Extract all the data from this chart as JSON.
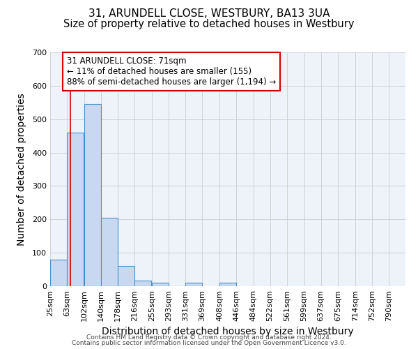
{
  "title1": "31, ARUNDELL CLOSE, WESTBURY, BA13 3UA",
  "title2": "Size of property relative to detached houses in Westbury",
  "xlabel": "Distribution of detached houses by size in Westbury",
  "ylabel": "Number of detached properties",
  "bin_labels": [
    "25sqm",
    "63sqm",
    "102sqm",
    "140sqm",
    "178sqm",
    "216sqm",
    "255sqm",
    "293sqm",
    "331sqm",
    "369sqm",
    "408sqm",
    "446sqm",
    "484sqm",
    "522sqm",
    "561sqm",
    "599sqm",
    "637sqm",
    "675sqm",
    "714sqm",
    "752sqm",
    "790sqm"
  ],
  "bin_edges": [
    25,
    63,
    102,
    140,
    178,
    216,
    255,
    293,
    331,
    369,
    408,
    446,
    484,
    522,
    561,
    599,
    637,
    675,
    714,
    752,
    790
  ],
  "bar_heights": [
    80,
    460,
    545,
    205,
    60,
    17,
    10,
    1,
    10,
    0,
    10,
    0,
    0,
    0,
    0,
    0,
    0,
    0,
    0,
    0
  ],
  "bar_color": "#c8d8f0",
  "bar_edge_color": "#4a90c8",
  "property_size": 71,
  "property_line_color": "#cc0000",
  "annotation_line1": "31 ARUNDELL CLOSE: 71sqm",
  "annotation_line2": "← 11% of detached houses are smaller (155)",
  "annotation_line3": "88% of semi-detached houses are larger (1,194) →",
  "annotation_box_color": "#ffffff",
  "annotation_box_edge_color": "#cc0000",
  "ylim": [
    0,
    700
  ],
  "yticks": [
    0,
    100,
    200,
    300,
    400,
    500,
    600,
    700
  ],
  "grid_color": "#cccccc",
  "background_color": "#eef3fa",
  "footer_text1": "Contains HM Land Registry data © Crown copyright and database right 2024.",
  "footer_text2": "Contains public sector information licensed under the Open Government Licence v3.0.",
  "title_fontsize": 11,
  "axis_label_fontsize": 10,
  "tick_fontsize": 8,
  "annotation_fontsize": 8.5,
  "footer_fontsize": 6.5
}
